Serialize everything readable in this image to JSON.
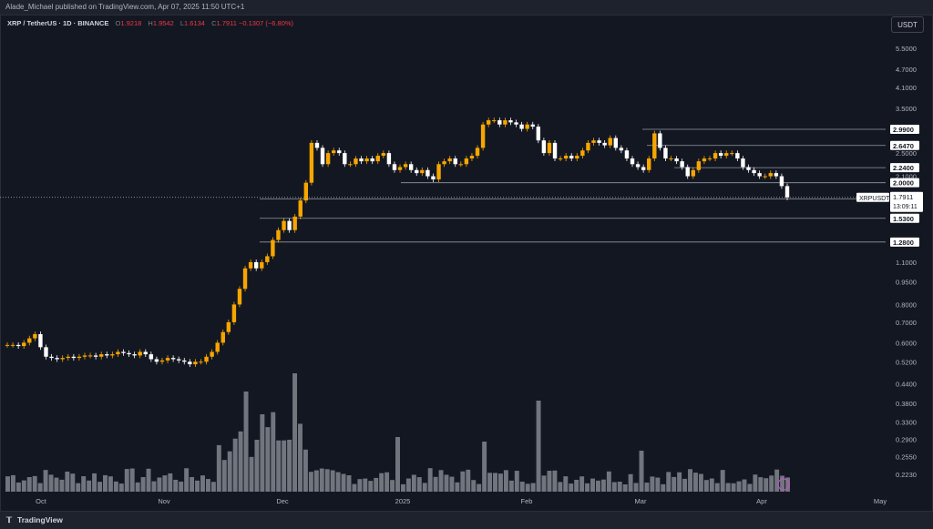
{
  "header": {
    "publisher_line": "Alade_Michael published on TradingView.com, Apr 07, 2025 11:50 UTC+1"
  },
  "legend": {
    "pair": "XRP / TetherUS · 1D · BINANCE",
    "o_label": "O",
    "o": "1.9218",
    "h_label": "H",
    "h": "1.9542",
    "l_label": "L",
    "l": "1.6134",
    "c_label": "C",
    "c": "1.7911",
    "change": "−0.1307 (−6.80%)"
  },
  "currency_button": "USDT",
  "footer": {
    "brand": "TradingView"
  },
  "colors": {
    "background": "#131722",
    "candle_up": "#f7a600",
    "candle_down": "#ffffff",
    "volume": "#8a8d95",
    "line_level": "#9598a1",
    "last_price_label": "#ffffff"
  },
  "chart_data": {
    "type": "candlestick",
    "symbol": "XRPUSDT",
    "scale": "log",
    "x_ticks": [
      "Oct",
      "Nov",
      "Dec",
      "2025",
      "Feb",
      "Mar",
      "Apr",
      "May"
    ],
    "y_ticks": [
      "5.5000",
      "4.7000",
      "4.1000",
      "3.5000",
      "2.5000",
      "2.1000",
      "1.1000",
      "0.9500",
      "0.8000",
      "0.7000",
      "0.6000",
      "0.5200",
      "0.4400",
      "0.3800",
      "0.3300",
      "0.2900",
      "0.2550",
      "0.2230"
    ],
    "horizontal_levels": [
      {
        "value": 2.99,
        "label": "2.9900"
      },
      {
        "value": 2.647,
        "label": "2.6470"
      },
      {
        "value": 2.24,
        "label": "2.2400"
      },
      {
        "value": 2.0,
        "label": "2.0000"
      },
      {
        "value": 1.772,
        "label": "1.7720"
      },
      {
        "value": 1.53,
        "label": "1.5300"
      },
      {
        "value": 1.28,
        "label": "1.2800"
      }
    ],
    "last_price": {
      "symbol": "XRPUSDT",
      "value": 1.7911,
      "label": "1.7911",
      "countdown": "13:09:11"
    },
    "candles_approx_close": [
      0.59,
      0.59,
      0.585,
      0.6,
      0.62,
      0.64,
      0.58,
      0.54,
      0.535,
      0.53,
      0.535,
      0.54,
      0.535,
      0.54,
      0.545,
      0.545,
      0.54,
      0.55,
      0.545,
      0.55,
      0.56,
      0.555,
      0.55,
      0.545,
      0.56,
      0.55,
      0.53,
      0.52,
      0.525,
      0.535,
      0.53,
      0.525,
      0.52,
      0.51,
      0.52,
      0.52,
      0.54,
      0.56,
      0.6,
      0.65,
      0.7,
      0.8,
      0.9,
      1.05,
      1.1,
      1.05,
      1.1,
      1.15,
      1.3,
      1.4,
      1.5,
      1.4,
      1.55,
      1.75,
      2.0,
      2.7,
      2.6,
      2.3,
      2.5,
      2.55,
      2.5,
      2.3,
      2.3,
      2.4,
      2.35,
      2.4,
      2.35,
      2.45,
      2.5,
      2.3,
      2.2,
      2.25,
      2.3,
      2.2,
      2.15,
      2.2,
      2.1,
      2.05,
      2.3,
      2.35,
      2.4,
      2.3,
      2.3,
      2.4,
      2.45,
      2.6,
      3.1,
      3.2,
      3.2,
      3.1,
      3.2,
      3.15,
      3.1,
      3.0,
      3.1,
      3.05,
      2.75,
      2.5,
      2.7,
      2.4,
      2.4,
      2.45,
      2.4,
      2.45,
      2.55,
      2.7,
      2.75,
      2.7,
      2.65,
      2.8,
      2.6,
      2.55,
      2.4,
      2.3,
      2.25,
      2.2,
      2.4,
      2.9,
      2.6,
      2.4,
      2.4,
      2.35,
      2.25,
      2.1,
      2.2,
      2.35,
      2.4,
      2.4,
      2.5,
      2.45,
      2.5,
      2.5,
      2.4,
      2.25,
      2.2,
      2.15,
      2.1,
      2.1,
      2.15,
      2.1,
      1.95,
      1.79
    ],
    "volume_bars": 145
  }
}
